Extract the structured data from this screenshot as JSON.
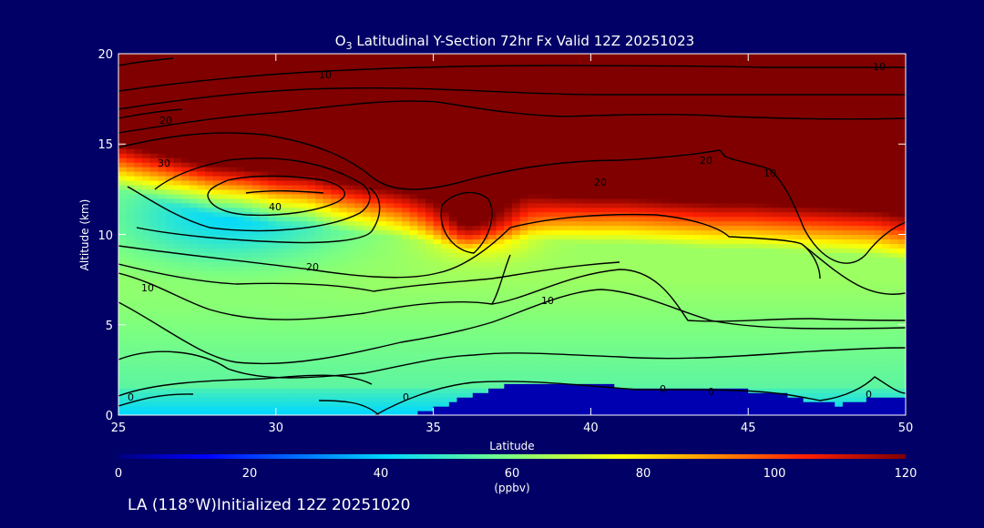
{
  "chart_data": {
    "type": "heatmap",
    "title_prefix": "O",
    "title_subscript": "3",
    "title_rest": " Latitudinal Y-Section 72hr  Fx Valid 12Z 20251023",
    "xlabel": "Latitude",
    "ylabel": "Altitude (km)",
    "xlim": [
      25,
      50
    ],
    "ylim": [
      0,
      20
    ],
    "x_ticks": [
      25,
      30,
      35,
      40,
      45,
      50
    ],
    "y_ticks": [
      0,
      5,
      10,
      15,
      20
    ],
    "colorbar": {
      "label": "(ppbv)",
      "range": [
        0,
        120
      ],
      "ticks": [
        0,
        20,
        40,
        60,
        80,
        100,
        120
      ]
    },
    "contour_labels": [
      "0",
      "10",
      "20",
      "30",
      "40",
      "20",
      "10",
      "20",
      "10",
      "20",
      "10",
      "0",
      "0",
      "0",
      "0",
      "10"
    ],
    "ozone_field": {
      "lat": [
        25,
        26,
        27,
        28,
        29,
        30,
        31,
        32,
        33,
        34,
        35,
        36,
        37,
        38,
        39,
        40,
        41,
        42,
        43,
        44,
        45,
        46,
        47,
        48,
        49,
        50
      ],
      "alt": [
        0,
        1,
        2,
        3,
        4,
        5,
        6,
        7,
        8,
        9,
        10,
        11,
        12,
        13,
        14,
        15,
        16,
        17,
        18,
        19,
        20
      ],
      "surface_alt": [
        0,
        0,
        0,
        0,
        0,
        0,
        0,
        0,
        0,
        0,
        0.3,
        1.0,
        1.6,
        1.7,
        1.7,
        1.7,
        1.6,
        1.6,
        1.5,
        1.5,
        1.4,
        1.2,
        0.8,
        0.6,
        1.0,
        1.0
      ],
      "tropopause_alt": [
        14.5,
        14.0,
        13.5,
        13.0,
        12.8,
        12.5,
        12.5,
        12.2,
        12.0,
        11.8,
        11.5,
        11.0,
        11.5,
        11.8,
        11.6,
        11.5,
        11.5,
        11.4,
        11.3,
        11.2,
        11.2,
        11.1,
        11.0,
        10.9,
        10.8,
        10.5
      ],
      "tropo_high_lat": 30.5,
      "tropo_high_alt": 12.0
    }
  },
  "footer": {
    "location": "LA (118°W)Initialized 12Z 20251020"
  }
}
